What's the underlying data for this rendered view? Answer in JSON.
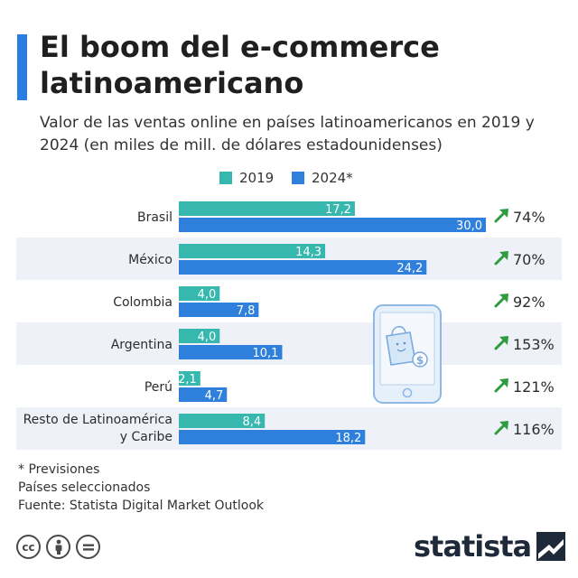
{
  "title": "El boom del e-commerce latinoamericano",
  "subtitle": "Valor de las ventas online en países latinoamericanos en 2019 y 2024 (en miles de mill. de dólares estadounidenses)",
  "legend": [
    {
      "label": "2019",
      "color": "#37b8ae"
    },
    {
      "label": "2024*",
      "color": "#2f7fdc"
    }
  ],
  "chart_data": {
    "type": "bar",
    "orientation": "horizontal",
    "categories": [
      "Brasil",
      "México",
      "Colombia",
      "Argentina",
      "Perú",
      "Resto de Latinoamérica y Caribe"
    ],
    "series": [
      {
        "name": "2019",
        "values": [
          17.2,
          14.3,
          4.0,
          4.0,
          2.1,
          8.4
        ],
        "labels": [
          "17,2",
          "14,3",
          "4,0",
          "4,0",
          "2,1",
          "8,4"
        ],
        "color": "#37b8ae"
      },
      {
        "name": "2024*",
        "values": [
          30.0,
          24.2,
          7.8,
          10.1,
          4.7,
          18.2
        ],
        "labels": [
          "30,0",
          "24,2",
          "7,8",
          "10,1",
          "4,7",
          "18,2"
        ],
        "color": "#2f7fdc"
      }
    ],
    "growth": [
      "74%",
      "70%",
      "92%",
      "153%",
      "121%",
      "116%"
    ],
    "growth_icon": "arrow-up-right-icon",
    "growth_color": "#2e9b3c",
    "xlim": [
      0,
      30
    ],
    "grid": false,
    "legend_position": "top"
  },
  "footnotes": [
    "* Previsiones",
    "Países seleccionados",
    "Fuente: Statista Digital Market Outlook"
  ],
  "license_icons": [
    "cc-icon",
    "attribution-icon",
    "no-derivatives-icon"
  ],
  "brand": {
    "name": "statista",
    "color": "#1e2a3a"
  },
  "illustration": "smartphone-shopping-bag-icon"
}
